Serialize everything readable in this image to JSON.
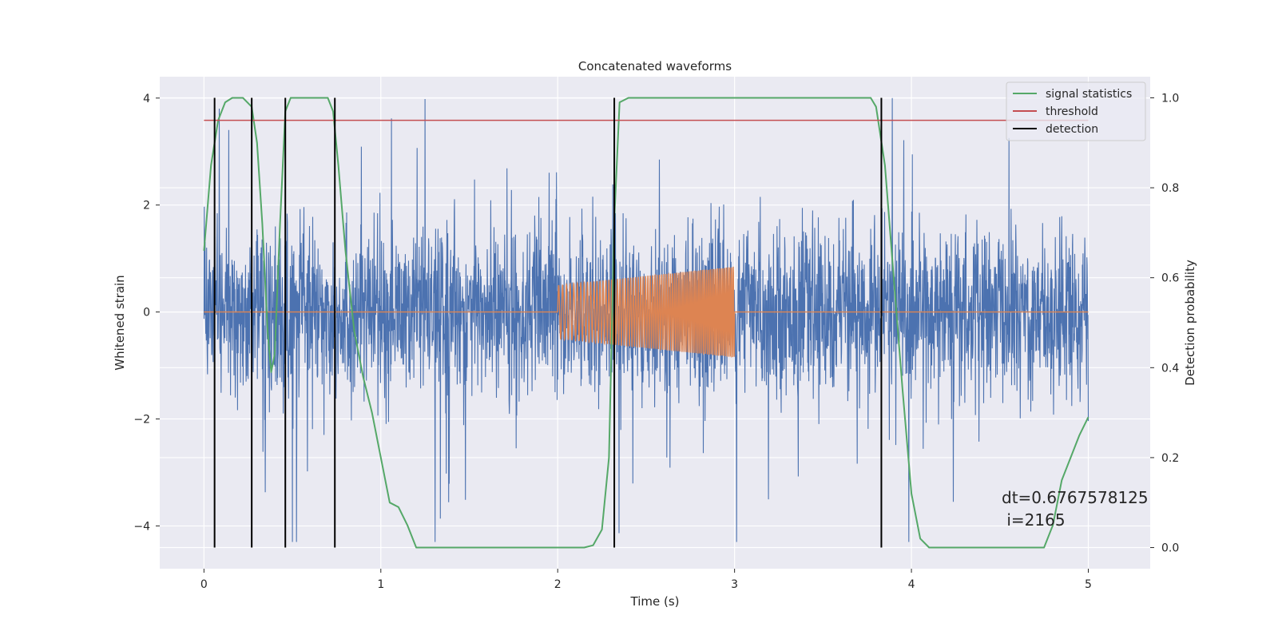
{
  "chart_data": {
    "type": "line",
    "title": "Concatenated waveforms",
    "xlabel": "Time (s)",
    "ylabel": "Whitened strain",
    "ylabel_right": "Detection probability",
    "xlim": [
      -0.25,
      5.35
    ],
    "ylim": [
      -4.8,
      4.4
    ],
    "ylim_right": [
      -0.047,
      1.047
    ],
    "xticks": [
      0,
      1,
      2,
      3,
      4,
      5
    ],
    "yticks": [
      4,
      2,
      0,
      -2,
      -4
    ],
    "yticks_right": [
      1.0,
      0.8,
      0.6,
      0.4,
      0.2,
      0.0
    ],
    "grid": true,
    "legend_position": "top-right",
    "legend": [
      {
        "label": "signal statistics",
        "color": "#55a868"
      },
      {
        "label": "threshold",
        "color": "#c44e52"
      },
      {
        "label": "detection",
        "color": "#000000"
      }
    ],
    "series": [
      {
        "name": "",
        "kind": "whitened-noise",
        "color": "#4c72b0",
        "x_range": [
          0,
          5
        ],
        "approx_envelope": [
          -3,
          4
        ]
      },
      {
        "name": "",
        "kind": "injected-chirp",
        "color": "#dd8452",
        "x": [
          0,
          2,
          2,
          3,
          3,
          5
        ],
        "amplitude_start": 0.5,
        "amplitude_end": 0.85,
        "chirp_range": [
          2,
          3
        ]
      },
      {
        "name": "signal statistics",
        "axis": "right",
        "color": "#55a868",
        "x": [
          0,
          0.04,
          0.08,
          0.12,
          0.16,
          0.22,
          0.27,
          0.3,
          0.33,
          0.36,
          0.38,
          0.4,
          0.43,
          0.46,
          0.49,
          0.55,
          0.7,
          0.73,
          0.76,
          0.8,
          0.85,
          0.9,
          0.95,
          1.0,
          1.05,
          1.1,
          1.15,
          1.2,
          1.5,
          2.0,
          2.15,
          2.2,
          2.25,
          2.29,
          2.32,
          2.35,
          2.4,
          3.0,
          3.7,
          3.77,
          3.8,
          3.85,
          3.9,
          3.95,
          4.0,
          4.05,
          4.1,
          4.5,
          4.75,
          4.8,
          4.85,
          4.9,
          4.95,
          5.0
        ],
        "y": [
          0.66,
          0.85,
          0.95,
          0.99,
          1.0,
          1.0,
          0.98,
          0.9,
          0.72,
          0.48,
          0.39,
          0.43,
          0.72,
          0.97,
          1.0,
          1.0,
          1.0,
          0.97,
          0.85,
          0.66,
          0.48,
          0.38,
          0.3,
          0.2,
          0.1,
          0.09,
          0.05,
          0.0,
          0.0,
          0.0,
          0.0,
          0.005,
          0.04,
          0.2,
          0.73,
          0.99,
          1.0,
          1.0,
          1.0,
          1.0,
          0.98,
          0.85,
          0.6,
          0.35,
          0.12,
          0.02,
          0.0,
          0.0,
          0.0,
          0.05,
          0.15,
          0.2,
          0.25,
          0.29
        ]
      },
      {
        "name": "threshold",
        "axis": "right",
        "color": "#c44e52",
        "x": [
          0,
          5
        ],
        "y": [
          0.95,
          0.95
        ]
      }
    ],
    "detections": [
      0.06,
      0.27,
      0.46,
      0.74,
      2.32,
      3.83
    ],
    "annotation": {
      "lines": [
        "dt=0.6767578125",
        " i=2165"
      ]
    }
  }
}
